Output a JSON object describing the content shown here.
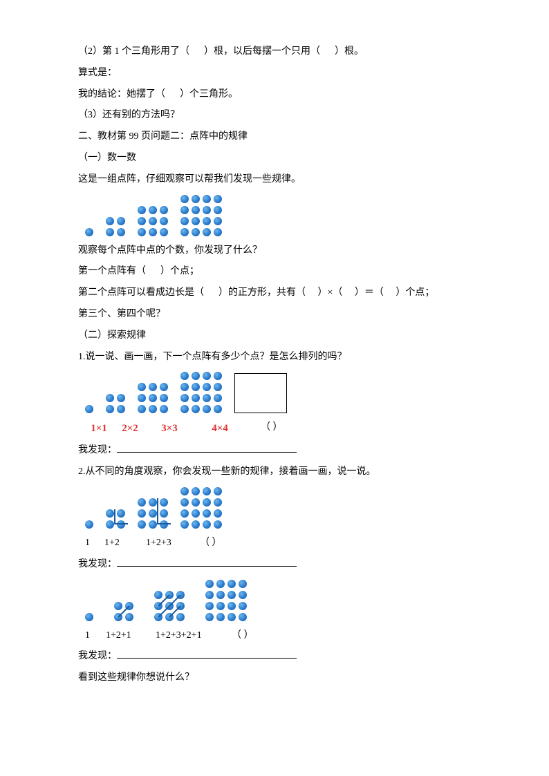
{
  "q1": {
    "line1_a": "（2）第 1 个三角形用了（",
    "line1_b": "）根，以后每摆一个只用（",
    "line1_c": "）根。",
    "line2": "算式是：",
    "line3_a": "我的结论：她摆了（",
    "line3_b": "）个三角形。",
    "line4": "（3）还有别的方法吗？"
  },
  "q2": {
    "heading": "二、教材第 99 页问题二：点阵中的规律",
    "sub1_title": "（一）数一数",
    "sub1_intro": "这是一组点阵，仔细观察可以帮我们发现一些规律。",
    "obs1": "观察每个点阵中点的个数，你发现了什么？",
    "obs2_a": "第一个点阵有（",
    "obs2_b": "）个点；",
    "obs3_a": "第二个点阵可以看成边长是（",
    "obs3_b": "）的正方形，共有（",
    "obs3_c": "）×（",
    "obs3_d": "）＝（",
    "obs3_e": "）个点；",
    "obs4": "第三个、第四个呢？",
    "sub2_title": "（二）探索规律",
    "sub2_q1": "1.说一说、画一画，下一个点阵有多少个点？是怎么排列的吗？",
    "labels": [
      "1×1",
      "2×2",
      "3×3",
      "4×4"
    ],
    "blank_paren": "（         ）",
    "found_prefix": "我发现：",
    "sub2_q2": "2.从不同的角度观察，你会发现一些新的规律，接着画一画，说一说。",
    "row2_labels": [
      "1",
      "1+2",
      "1+2+3",
      "（             ）"
    ],
    "row3_labels": [
      "1",
      "1+2+1",
      "1+2+3+2+1",
      "（             ）"
    ],
    "final": "看到这些规律你想说什么？"
  },
  "dots": {
    "set1": [
      1,
      2,
      3,
      4
    ],
    "color": "#2876c8"
  }
}
